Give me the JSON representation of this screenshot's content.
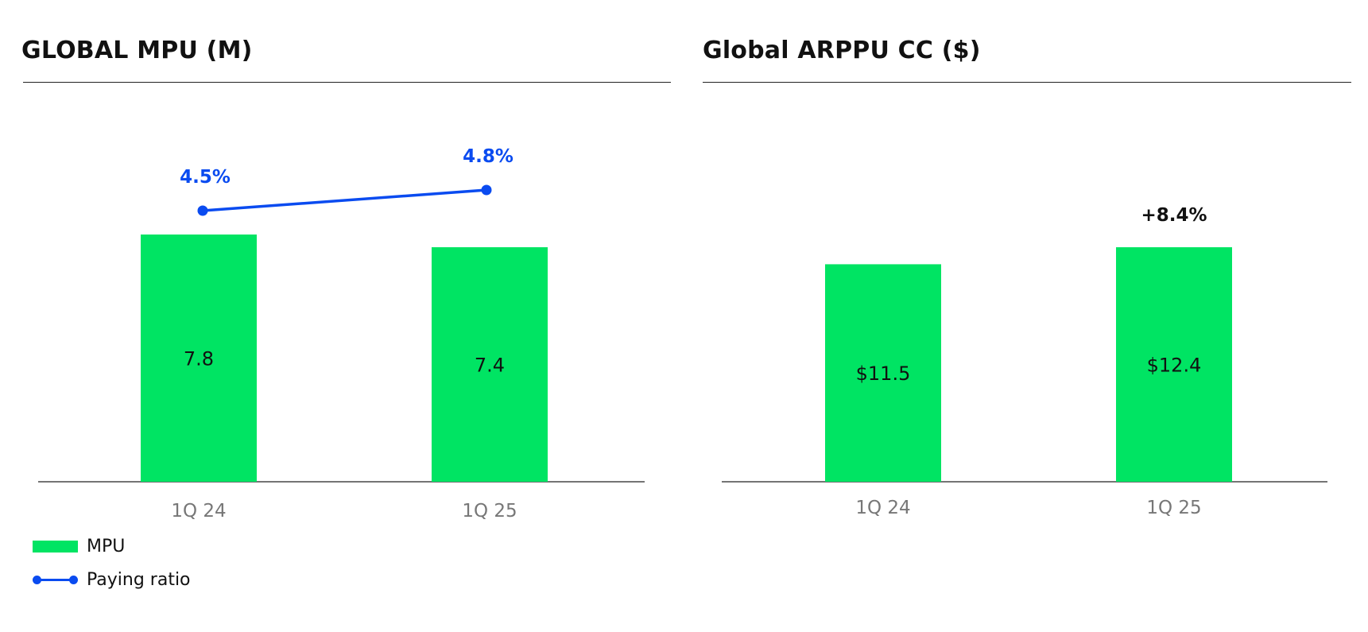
{
  "colors": {
    "bar": "#00E463",
    "line": "#0A4BF0",
    "axis": "#222222",
    "tick": "#777777",
    "text": "#111111"
  },
  "chart_data": [
    {
      "type": "bar",
      "title": "GLOBAL MPU (M)",
      "categories": [
        "1Q 24",
        "1Q 25"
      ],
      "series": [
        {
          "name": "MPU",
          "type": "bar",
          "values": [
            7.8,
            7.4
          ],
          "labels": [
            "7.8",
            "7.4"
          ]
        },
        {
          "name": "Paying ratio",
          "type": "line",
          "values": [
            4.5,
            4.8
          ],
          "labels": [
            "4.5%",
            "4.8%"
          ]
        }
      ],
      "legend": [
        "MPU",
        "Paying ratio"
      ],
      "legend_position": "bottom-left"
    },
    {
      "type": "bar",
      "title": "Global ARPPU CC ($)",
      "categories": [
        "1Q 24",
        "1Q 25"
      ],
      "series": [
        {
          "type": "bar",
          "values": [
            11.5,
            12.4
          ],
          "labels": [
            "$11.5",
            "$12.4"
          ]
        }
      ],
      "annotations": [
        "+8.4%"
      ]
    }
  ]
}
